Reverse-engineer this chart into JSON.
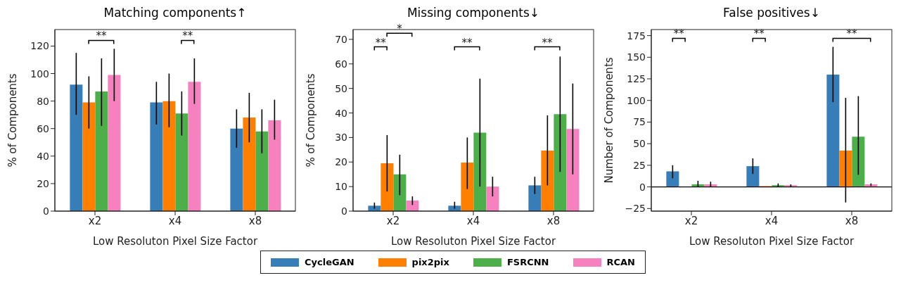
{
  "chart_data": [
    {
      "type": "bar",
      "title": "Matching components↑",
      "xlabel": "Low Resoluton Pixel Size Factor",
      "ylabel": "% of Components",
      "categories": [
        "x2",
        "x4",
        "x8"
      ],
      "ylim": [
        0,
        132
      ],
      "yticks": [
        0,
        20,
        40,
        60,
        80,
        100,
        120
      ],
      "legend": "bottom",
      "series": [
        {
          "name": "CycleGAN",
          "color": "#377eb8",
          "values": [
            92,
            79,
            60
          ],
          "errors": [
            [
              70,
              115
            ],
            [
              63,
              94
            ],
            [
              46,
              74
            ]
          ]
        },
        {
          "name": "pix2pix",
          "color": "#ff7f00",
          "values": [
            79,
            80,
            68
          ],
          "errors": [
            [
              60,
              98
            ],
            [
              61,
              100
            ],
            [
              50,
              86
            ]
          ]
        },
        {
          "name": "FSRCNN",
          "color": "#4daf4a",
          "values": [
            87,
            71,
            58
          ],
          "errors": [
            [
              62,
              111
            ],
            [
              55,
              87
            ],
            [
              42,
              74
            ]
          ]
        },
        {
          "name": "RCAN",
          "color": "#f781bf",
          "values": [
            99,
            94,
            66
          ],
          "errors": [
            [
              80,
              118
            ],
            [
              78,
              111
            ],
            [
              52,
              81
            ]
          ]
        }
      ],
      "annotations": [
        "**",
        "**"
      ]
    },
    {
      "type": "bar",
      "title": "Missing components↓",
      "xlabel": "Low Resoluton Pixel Size Factor",
      "ylabel": "% of Components",
      "categories": [
        "x2",
        "x4",
        "x8"
      ],
      "ylim": [
        0,
        74
      ],
      "yticks": [
        0,
        10,
        20,
        30,
        40,
        50,
        60,
        70
      ],
      "series": [
        {
          "color": "#377eb8",
          "values": [
            2.2,
            2.2,
            10.5
          ],
          "errors": [
            [
              1,
              3.5
            ],
            [
              1,
              3.8
            ],
            [
              7,
              14
            ]
          ]
        },
        {
          "color": "#ff7f00",
          "values": [
            19.5,
            19.8,
            24.7
          ],
          "errors": [
            [
              8,
              31
            ],
            [
              9,
              30
            ],
            [
              10.5,
              39
            ]
          ]
        },
        {
          "color": "#4daf4a",
          "values": [
            15,
            32,
            39.5
          ],
          "errors": [
            [
              6.5,
              23
            ],
            [
              10,
              54
            ],
            [
              16,
              63
            ]
          ]
        },
        {
          "color": "#f781bf",
          "values": [
            4.3,
            10,
            33.5
          ],
          "errors": [
            [
              2.5,
              6
            ],
            [
              6,
              14
            ],
            [
              15,
              52
            ]
          ]
        }
      ],
      "annotations": [
        "**",
        "*",
        "**",
        "**"
      ]
    },
    {
      "type": "bar",
      "title": "False positives↓",
      "xlabel": "Low Resoluton Pixel Size Factor",
      "ylabel": "Number of Components",
      "categories": [
        "x2",
        "x4",
        "x8"
      ],
      "ylim": [
        -28,
        182
      ],
      "yticks": [
        -25,
        0,
        25,
        50,
        75,
        100,
        125,
        150,
        175
      ],
      "ref_lines": [
        {
          "axis": "y",
          "value": 0,
          "color": "#000000"
        }
      ],
      "series": [
        {
          "color": "#377eb8",
          "values": [
            18,
            24,
            130
          ],
          "errors": [
            [
              10,
              25
            ],
            [
              15,
              33
            ],
            [
              98,
              162
            ]
          ]
        },
        {
          "color": "#ff7f00",
          "values": [
            0,
            1,
            42
          ],
          "errors": [
            null,
            null,
            [
              -18,
              103
            ]
          ]
        },
        {
          "color": "#4daf4a",
          "values": [
            3,
            2,
            58
          ],
          "errors": [
            [
              0,
              7
            ],
            [
              0,
              4
            ],
            [
              14,
              105
            ]
          ]
        },
        {
          "color": "#f781bf",
          "values": [
            3,
            2,
            3
          ],
          "errors": [
            [
              0,
              6
            ],
            [
              0,
              3
            ],
            [
              1,
              4
            ]
          ]
        }
      ],
      "annotations": [
        "**",
        "**",
        "**"
      ]
    }
  ]
}
